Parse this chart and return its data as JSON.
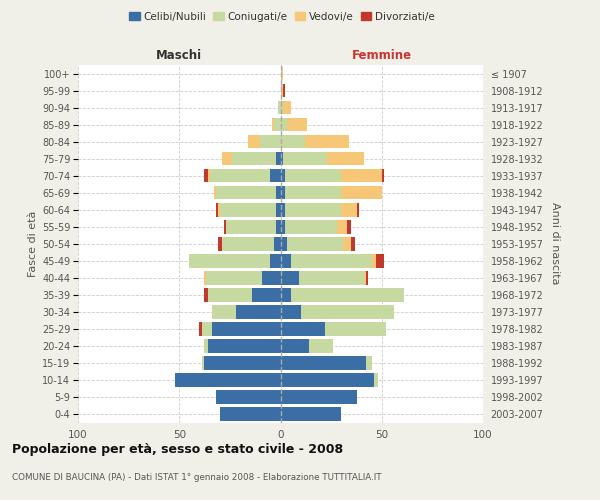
{
  "age_groups": [
    "0-4",
    "5-9",
    "10-14",
    "15-19",
    "20-24",
    "25-29",
    "30-34",
    "35-39",
    "40-44",
    "45-49",
    "50-54",
    "55-59",
    "60-64",
    "65-69",
    "70-74",
    "75-79",
    "80-84",
    "85-89",
    "90-94",
    "95-99",
    "100+"
  ],
  "birth_years": [
    "2003-2007",
    "1998-2002",
    "1993-1997",
    "1988-1992",
    "1983-1987",
    "1978-1982",
    "1973-1977",
    "1968-1972",
    "1963-1967",
    "1958-1962",
    "1953-1957",
    "1948-1952",
    "1943-1947",
    "1938-1942",
    "1933-1937",
    "1928-1932",
    "1923-1927",
    "1918-1922",
    "1913-1917",
    "1908-1912",
    "≤ 1907"
  ],
  "colors": {
    "celibi": "#3a6ea5",
    "coniugati": "#c5d9a0",
    "vedovi": "#f5c776",
    "divorziati": "#c0392b"
  },
  "maschi": {
    "celibi": [
      30,
      32,
      52,
      38,
      36,
      34,
      22,
      14,
      9,
      5,
      3,
      2,
      2,
      2,
      5,
      2,
      0,
      0,
      0,
      0,
      0
    ],
    "coniugati": [
      0,
      0,
      0,
      1,
      2,
      5,
      12,
      22,
      28,
      40,
      26,
      25,
      28,
      30,
      30,
      22,
      10,
      3,
      1,
      0,
      0
    ],
    "vedovi": [
      0,
      0,
      0,
      0,
      0,
      0,
      0,
      0,
      1,
      0,
      0,
      0,
      1,
      1,
      1,
      5,
      6,
      1,
      0,
      0,
      0
    ],
    "divorziati": [
      0,
      0,
      0,
      0,
      0,
      1,
      0,
      2,
      0,
      0,
      2,
      1,
      1,
      0,
      2,
      0,
      0,
      0,
      0,
      0,
      0
    ]
  },
  "femmine": {
    "celibi": [
      30,
      38,
      46,
      42,
      14,
      22,
      10,
      5,
      9,
      5,
      3,
      2,
      2,
      2,
      2,
      1,
      0,
      0,
      0,
      0,
      0
    ],
    "coniugati": [
      0,
      0,
      2,
      3,
      12,
      30,
      46,
      56,
      32,
      40,
      28,
      26,
      28,
      28,
      28,
      22,
      12,
      3,
      1,
      0,
      0
    ],
    "vedovi": [
      0,
      0,
      0,
      0,
      0,
      0,
      0,
      0,
      1,
      2,
      4,
      5,
      8,
      20,
      20,
      18,
      22,
      10,
      4,
      1,
      1
    ],
    "divorziati": [
      0,
      0,
      0,
      0,
      0,
      0,
      0,
      0,
      1,
      4,
      2,
      2,
      1,
      0,
      1,
      0,
      0,
      0,
      0,
      1,
      0
    ]
  },
  "xlim": 100,
  "title": "Popolazione per età, sesso e stato civile - 2008",
  "subtitle": "COMUNE DI BAUCINA (PA) - Dati ISTAT 1° gennaio 2008 - Elaborazione TUTTITALIA.IT",
  "ylabel_left": "Fasce di età",
  "ylabel_right": "Anni di nascita",
  "label_maschi": "Maschi",
  "label_femmine": "Femmine",
  "legend_labels": [
    "Celibi/Nubili",
    "Coniugati/e",
    "Vedovi/e",
    "Divorziati/e"
  ],
  "bg_color": "#f0f0e8",
  "bar_bg_color": "#ffffff"
}
